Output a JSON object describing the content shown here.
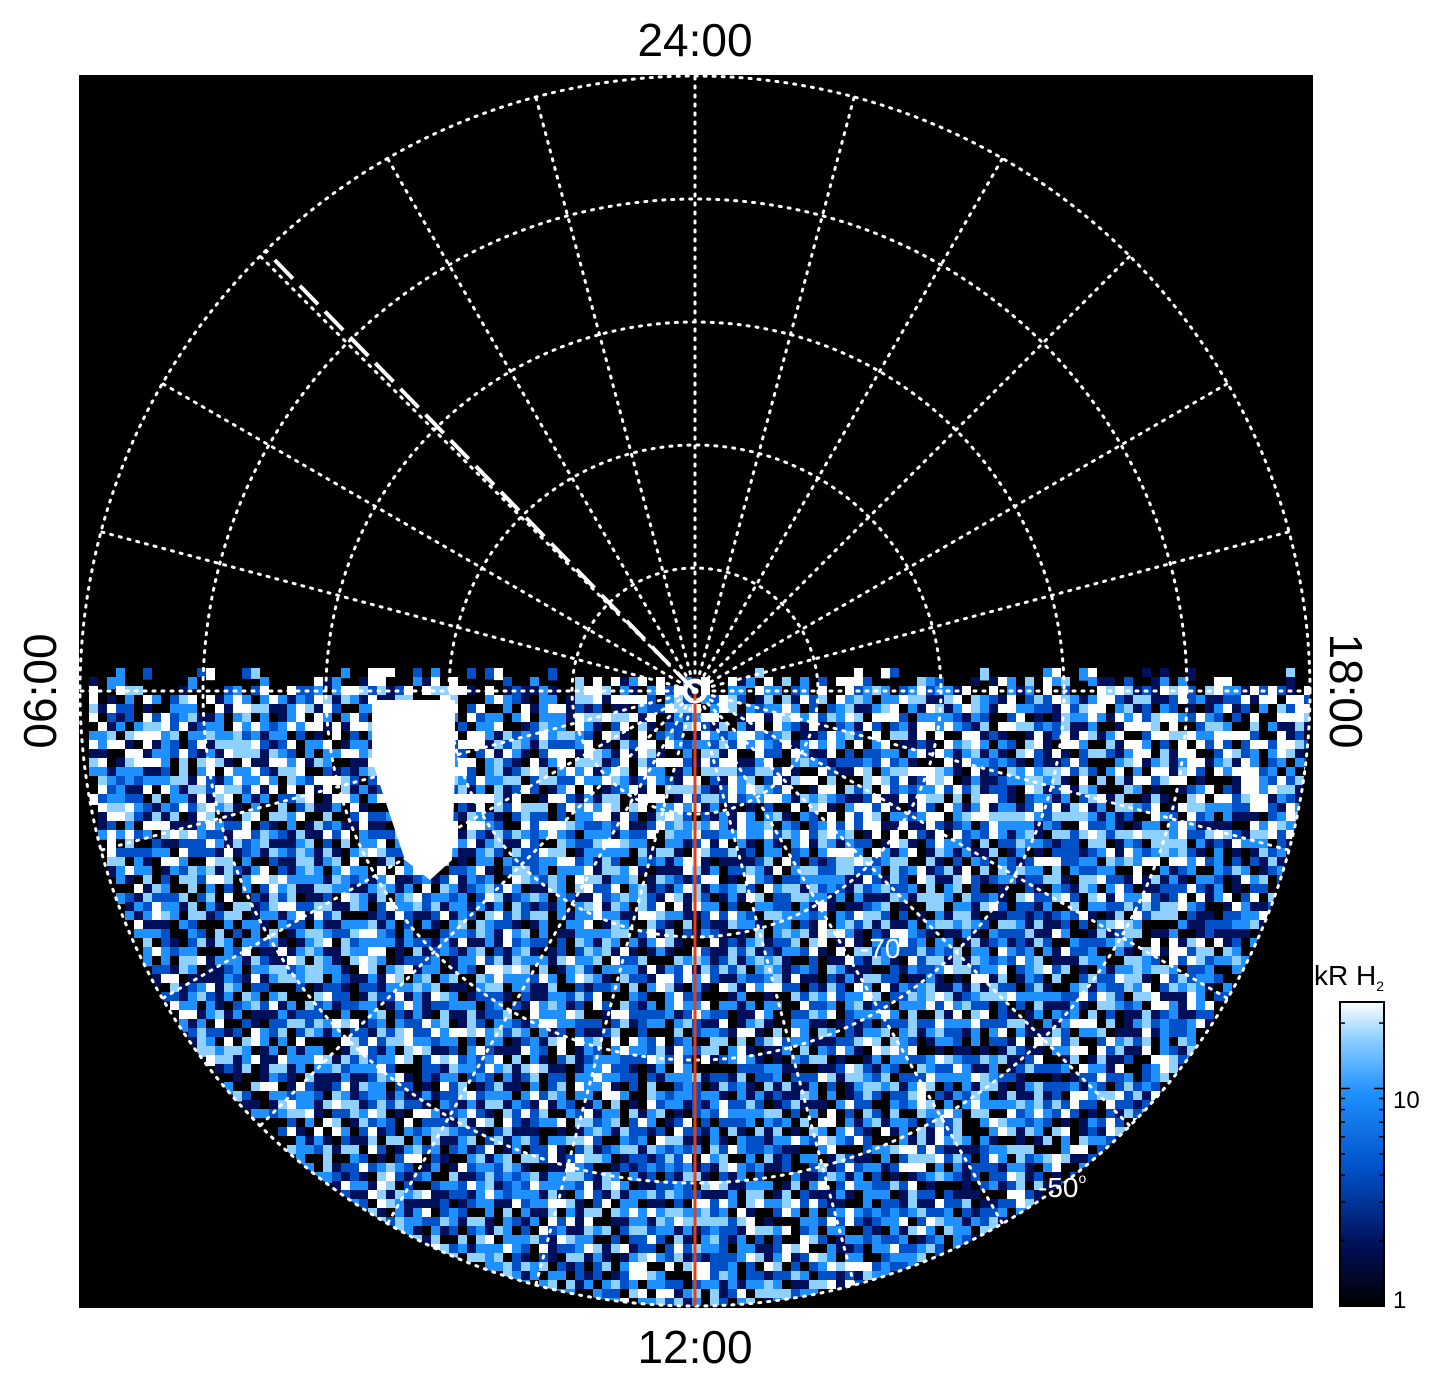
{
  "chart_data": {
    "type": "heatmap",
    "projection": "polar (south pole, local time)",
    "local_time_labels": {
      "top": "24:00",
      "bottom": "12:00",
      "left": "06:00",
      "right": "18:00"
    },
    "latitude_labels": [
      "-70",
      "-50"
    ],
    "latitude_circles_deg": [
      -80,
      -70,
      -60,
      -50
    ],
    "longitude_spokes_hours": 1,
    "grid": true,
    "colorbar": {
      "title": "kR H",
      "title_subscript": "2",
      "scale": "log",
      "range": [
        1,
        25
      ],
      "tick_labels": [
        "1",
        "10"
      ],
      "colors": [
        "#000000",
        "#00105a",
        "#0050c8",
        "#1e90ff",
        "#8ed0ff",
        "#ffffff"
      ]
    },
    "features": {
      "reference_line_color": "#e0401a",
      "dashed_line_color": "#ffffff",
      "data_coverage": "lower hemisphere (dayside, 06:00–12:00–18:00)",
      "bright_patch": "near 06:00–07:00 LT, high latitude"
    }
  }
}
